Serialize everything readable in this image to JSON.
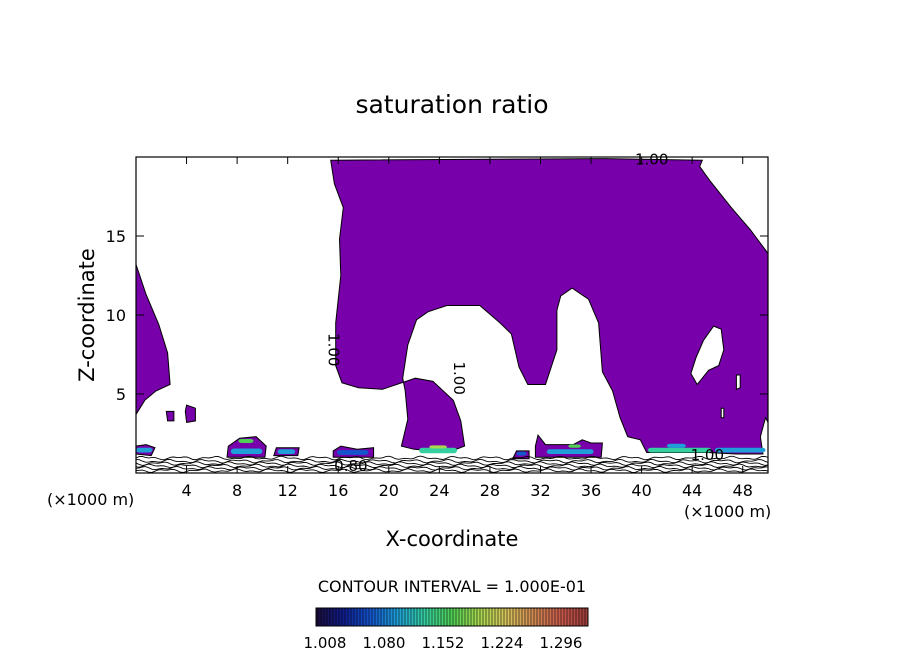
{
  "chart_data": {
    "type": "heatmap",
    "title": "saturation ratio",
    "xlabel": "X-coordinate",
    "ylabel": "Z-coordinate",
    "x_unit_left": "(×1000 m)",
    "x_unit_right": "(×1000 m)",
    "xlim": [
      0,
      50
    ],
    "ylim": [
      0,
      20
    ],
    "x_ticks": [
      4,
      8,
      12,
      16,
      20,
      24,
      28,
      32,
      36,
      40,
      44,
      48
    ],
    "y_ticks": [
      5,
      10,
      15
    ],
    "contour_interval_text": "CONTOUR INTERVAL = 1.000E-01",
    "contour_labels": [
      {
        "text": "1.00",
        "x": 40.8,
        "y": 19.8,
        "rotate": 0
      },
      {
        "text": "1.00",
        "x": 15.6,
        "y": 7.8,
        "rotate": 90
      },
      {
        "text": "1.00",
        "x": 25.5,
        "y": 6.0,
        "rotate": 90
      },
      {
        "text": "1.00",
        "x": 45.2,
        "y": 1.1,
        "rotate": 0
      },
      {
        "text": "0.80",
        "x": 17.0,
        "y": 0.4,
        "rotate": 0
      }
    ],
    "colorbar": {
      "tick_labels": [
        "1.008",
        "1.080",
        "1.152",
        "1.224",
        "1.296"
      ],
      "colors": [
        "#1c0d3a",
        "#0f1c8c",
        "#1455cc",
        "#1f9fd8",
        "#35cfa0",
        "#4fcf55",
        "#a8d850",
        "#d6c45c",
        "#d08a52",
        "#c85a4c",
        "#9a3a3a"
      ]
    },
    "fill_color": "#7700aa",
    "regions": [
      {
        "name": "region-left-edge",
        "points": [
          [
            0,
            13.2
          ],
          [
            0.8,
            11.3
          ],
          [
            1.8,
            9.4
          ],
          [
            2.5,
            7.6
          ],
          [
            2.7,
            5.6
          ],
          [
            1.6,
            5.2
          ],
          [
            0.7,
            4.6
          ],
          [
            0,
            3.7
          ]
        ]
      },
      {
        "name": "region-upper-main",
        "points": [
          [
            15.4,
            19.8
          ],
          [
            37,
            19.9
          ],
          [
            44.8,
            19.8
          ],
          [
            44.6,
            19.4
          ],
          [
            45.4,
            18.5
          ],
          [
            47.1,
            16.8
          ],
          [
            48.6,
            15.4
          ],
          [
            50,
            13.9
          ],
          [
            50,
            3.2
          ],
          [
            49.8,
            3.5
          ],
          [
            49.4,
            2.3
          ],
          [
            49.6,
            1.2
          ],
          [
            47.5,
            1.2
          ],
          [
            45.2,
            1.3
          ],
          [
            43,
            1.3
          ],
          [
            40.4,
            1.3
          ],
          [
            39.9,
            2.1
          ],
          [
            38.9,
            2.3
          ],
          [
            38.3,
            3.5
          ],
          [
            37.7,
            5.2
          ],
          [
            36.9,
            6.4
          ],
          [
            36.6,
            9.5
          ],
          [
            35.8,
            11
          ],
          [
            34.5,
            11.7
          ],
          [
            33.6,
            11.2
          ],
          [
            33.3,
            10.3
          ],
          [
            33.3,
            7.8
          ],
          [
            32.4,
            5.6
          ],
          [
            31,
            5.6
          ],
          [
            30.3,
            6.7
          ],
          [
            29.7,
            8.8
          ],
          [
            28.8,
            9.5
          ],
          [
            27.2,
            10.6
          ],
          [
            24.6,
            10.6
          ],
          [
            23.1,
            10.2
          ],
          [
            22.2,
            9.7
          ],
          [
            21.5,
            8.1
          ],
          [
            21.1,
            6.0
          ],
          [
            21.3,
            5.2
          ],
          [
            21.5,
            3.4
          ],
          [
            21.0,
            1.7
          ],
          [
            22.0,
            1.5
          ],
          [
            23.5,
            1.4
          ],
          [
            25.0,
            1.4
          ],
          [
            26.0,
            1.7
          ],
          [
            25.7,
            3.3
          ],
          [
            25.1,
            4.6
          ],
          [
            23.5,
            5.8
          ],
          [
            22.1,
            6.0
          ],
          [
            19.5,
            5.3
          ],
          [
            17.6,
            5.4
          ],
          [
            16.3,
            5.7
          ],
          [
            15.8,
            6.8
          ],
          [
            15.8,
            9.5
          ],
          [
            16.2,
            12.5
          ],
          [
            16.1,
            14.8
          ],
          [
            16.4,
            16.8
          ],
          [
            15.7,
            18.3
          ]
        ]
      },
      {
        "name": "region-band-a",
        "points": [
          [
            0,
            1.2
          ],
          [
            1.2,
            1.1
          ],
          [
            1.5,
            1.6
          ],
          [
            0.8,
            1.8
          ],
          [
            0,
            1.7
          ]
        ]
      },
      {
        "name": "region-band-b",
        "points": [
          [
            7.2,
            1.0
          ],
          [
            10.2,
            1.0
          ],
          [
            10.3,
            1.7
          ],
          [
            9.5,
            2.3
          ],
          [
            8.2,
            2.2
          ],
          [
            7.3,
            1.7
          ]
        ]
      },
      {
        "name": "region-band-c",
        "points": [
          [
            10.9,
            1.1
          ],
          [
            12.8,
            1.1
          ],
          [
            12.9,
            1.6
          ],
          [
            11.1,
            1.6
          ]
        ]
      },
      {
        "name": "region-band-d",
        "points": [
          [
            15.6,
            1.0
          ],
          [
            18.8,
            1.0
          ],
          [
            18.8,
            1.6
          ],
          [
            17.5,
            1.5
          ],
          [
            16.2,
            1.7
          ],
          [
            15.6,
            1.4
          ]
        ]
      },
      {
        "name": "region-band-e",
        "points": [
          [
            29.8,
            0.9
          ],
          [
            31.1,
            0.9
          ],
          [
            31.1,
            1.4
          ],
          [
            30.1,
            1.4
          ]
        ]
      },
      {
        "name": "region-band-f",
        "points": [
          [
            31.6,
            1.0
          ],
          [
            36.8,
            1.0
          ],
          [
            36.9,
            1.9
          ],
          [
            36.0,
            1.9
          ],
          [
            35.3,
            2.1
          ],
          [
            34.6,
            1.8
          ],
          [
            32.4,
            1.8
          ],
          [
            31.8,
            2.4
          ],
          [
            31.6,
            1.7
          ]
        ]
      },
      {
        "name": "region-small-a",
        "points": [
          [
            2.4,
            3.9
          ],
          [
            3.0,
            3.9
          ],
          [
            3.0,
            3.3
          ],
          [
            2.5,
            3.3
          ]
        ]
      },
      {
        "name": "region-small-b",
        "points": [
          [
            4.0,
            4.3
          ],
          [
            4.7,
            4.1
          ],
          [
            4.7,
            3.3
          ],
          [
            4.0,
            3.2
          ],
          [
            3.9,
            3.9
          ]
        ]
      }
    ],
    "holes": [
      {
        "name": "hole-upper-right",
        "points": [
          [
            45.7,
            9.3
          ],
          [
            46.3,
            9.1
          ],
          [
            46.5,
            7.8
          ],
          [
            46.1,
            6.8
          ],
          [
            45.3,
            6.5
          ],
          [
            44.4,
            5.6
          ],
          [
            43.9,
            6.3
          ],
          [
            44.3,
            7.3
          ],
          [
            44.9,
            8.4
          ]
        ]
      },
      {
        "name": "hole-small-right",
        "points": [
          [
            47.5,
            6.2
          ],
          [
            47.8,
            6.2
          ],
          [
            47.8,
            5.4
          ],
          [
            47.5,
            5.3
          ]
        ]
      },
      {
        "name": "hole-small-mid-right",
        "points": [
          [
            46.3,
            4.1
          ],
          [
            46.5,
            4.1
          ],
          [
            46.5,
            3.5
          ],
          [
            46.3,
            3.5
          ]
        ]
      }
    ],
    "colored_bands": [
      {
        "x0": 0.0,
        "x1": 1.3,
        "y": 1.3,
        "h": 0.3,
        "color": "#1f9fd8"
      },
      {
        "x0": 7.5,
        "x1": 10.0,
        "y": 1.2,
        "h": 0.35,
        "color": "#1f9fd8"
      },
      {
        "x0": 8.1,
        "x1": 9.3,
        "y": 1.9,
        "h": 0.25,
        "color": "#4fcf55"
      },
      {
        "x0": 11.2,
        "x1": 12.6,
        "y": 1.2,
        "h": 0.3,
        "color": "#1f9fd8"
      },
      {
        "x0": 15.9,
        "x1": 18.4,
        "y": 1.15,
        "h": 0.3,
        "color": "#1455cc"
      },
      {
        "x0": 22.4,
        "x1": 25.4,
        "y": 1.25,
        "h": 0.35,
        "color": "#35cfa0"
      },
      {
        "x0": 23.2,
        "x1": 24.6,
        "y": 1.55,
        "h": 0.2,
        "color": "#a8d850"
      },
      {
        "x0": 30.1,
        "x1": 30.9,
        "y": 1.1,
        "h": 0.25,
        "color": "#1455cc"
      },
      {
        "x0": 32.5,
        "x1": 36.2,
        "y": 1.2,
        "h": 0.3,
        "color": "#1f9fd8"
      },
      {
        "x0": 34.2,
        "x1": 35.2,
        "y": 1.6,
        "h": 0.2,
        "color": "#4fcf55"
      },
      {
        "x0": 40.5,
        "x1": 45.5,
        "y": 1.3,
        "h": 0.3,
        "color": "#35cfa0"
      },
      {
        "x0": 42.0,
        "x1": 43.5,
        "y": 1.6,
        "h": 0.25,
        "color": "#1f9fd8"
      },
      {
        "x0": 45.8,
        "x1": 49.8,
        "y": 1.3,
        "h": 0.3,
        "color": "#1f9fd8"
      }
    ],
    "surface_contour_levels": [
      0.95,
      0.75,
      0.6,
      0.45,
      0.3,
      0.15
    ]
  }
}
